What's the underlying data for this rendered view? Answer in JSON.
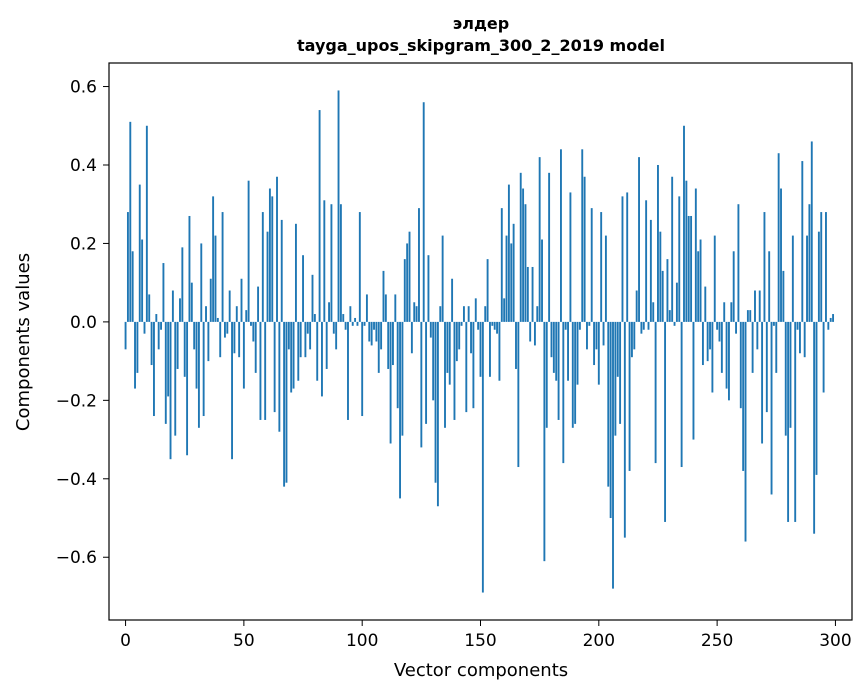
{
  "chart_data": {
    "type": "bar",
    "title": "элдер",
    "subtitle": "tayga_upos_skipgram_300_2_2019 model",
    "xlabel": "Vector components",
    "ylabel": "Components values",
    "xlim": [
      -7,
      307
    ],
    "ylim": [
      -0.76,
      0.66
    ],
    "xticks": [
      0,
      50,
      100,
      150,
      200,
      250,
      300
    ],
    "xtick_labels": [
      "0",
      "50",
      "100",
      "150",
      "200",
      "250",
      "300"
    ],
    "yticks": [
      -0.6,
      -0.4,
      -0.2,
      0.0,
      0.2,
      0.4,
      0.6
    ],
    "ytick_labels": [
      "−0.6",
      "−0.4",
      "−0.2",
      "0.0",
      "0.2",
      "0.4",
      "0.6"
    ],
    "bar_color": "#1f77b4",
    "grid": false,
    "x": "0..299 (component index)",
    "values": [
      -0.07,
      0.28,
      0.51,
      0.18,
      -0.17,
      -0.13,
      0.35,
      0.21,
      -0.03,
      0.5,
      0.07,
      -0.11,
      -0.24,
      0.02,
      -0.07,
      -0.02,
      0.15,
      -0.26,
      -0.19,
      -0.35,
      0.08,
      -0.29,
      -0.12,
      0.06,
      0.19,
      -0.14,
      -0.34,
      0.27,
      0.1,
      -0.07,
      -0.17,
      -0.27,
      0.2,
      -0.24,
      0.04,
      -0.1,
      0.11,
      0.32,
      0.22,
      0.01,
      -0.09,
      0.28,
      -0.04,
      -0.03,
      0.08,
      -0.35,
      -0.08,
      0.04,
      -0.09,
      0.11,
      -0.17,
      0.03,
      0.36,
      -0.01,
      -0.05,
      -0.13,
      0.09,
      -0.25,
      0.28,
      -0.25,
      0.23,
      0.34,
      0.32,
      -0.23,
      0.37,
      -0.28,
      0.26,
      -0.42,
      -0.41,
      -0.07,
      -0.18,
      -0.17,
      0.25,
      -0.15,
      -0.09,
      0.17,
      -0.09,
      -0.03,
      -0.07,
      0.12,
      0.02,
      -0.15,
      0.54,
      -0.19,
      0.31,
      -0.12,
      0.05,
      0.3,
      -0.03,
      -0.07,
      0.59,
      0.3,
      0.02,
      -0.02,
      -0.25,
      0.04,
      -0.01,
      0.01,
      -0.01,
      0.28,
      -0.24,
      -0.01,
      0.07,
      -0.05,
      -0.06,
      -0.02,
      -0.05,
      -0.13,
      -0.07,
      0.13,
      0.07,
      -0.12,
      -0.31,
      -0.11,
      0.07,
      -0.22,
      -0.45,
      -0.29,
      0.16,
      0.2,
      0.23,
      -0.08,
      0.05,
      0.04,
      0.29,
      -0.32,
      0.56,
      -0.26,
      0.17,
      -0.04,
      -0.2,
      -0.41,
      -0.47,
      0.04,
      0.22,
      -0.27,
      -0.13,
      -0.16,
      0.11,
      -0.25,
      -0.1,
      -0.07,
      -0.01,
      0.04,
      -0.23,
      0.04,
      -0.08,
      -0.22,
      0.06,
      -0.02,
      -0.14,
      -0.69,
      0.04,
      0.16,
      -0.14,
      -0.01,
      -0.02,
      -0.03,
      -0.15,
      0.29,
      0.06,
      0.22,
      0.35,
      0.2,
      0.25,
      -0.12,
      -0.37,
      0.38,
      0.34,
      0.3,
      0.14,
      -0.05,
      0.14,
      -0.06,
      0.04,
      0.42,
      0.21,
      -0.61,
      -0.27,
      0.38,
      -0.09,
      -0.13,
      -0.15,
      -0.25,
      0.44,
      -0.36,
      -0.02,
      -0.15,
      0.33,
      -0.27,
      -0.26,
      -0.16,
      -0.02,
      0.44,
      0.37,
      -0.07,
      -0.01,
      0.29,
      -0.11,
      -0.07,
      -0.16,
      0.28,
      -0.06,
      0.22,
      -0.42,
      -0.5,
      -0.68,
      -0.29,
      -0.14,
      -0.26,
      0.32,
      -0.55,
      0.33,
      -0.38,
      -0.09,
      -0.07,
      0.08,
      0.42,
      -0.03,
      -0.02,
      0.31,
      -0.02,
      0.26,
      0.05,
      -0.36,
      0.4,
      0.23,
      0.13,
      -0.51,
      0.16,
      0.03,
      0.37,
      -0.01,
      0.1,
      0.32,
      -0.37,
      0.5,
      0.36,
      0.27,
      0.27,
      -0.3,
      0.34,
      0.18,
      0.21,
      -0.11,
      0.09,
      -0.1,
      -0.07,
      -0.18,
      0.22,
      -0.02,
      -0.05,
      -0.13,
      0.05,
      -0.17,
      -0.2,
      0.05,
      0.18,
      -0.03,
      0.3,
      -0.22,
      -0.38,
      -0.56,
      0.03,
      0.03,
      -0.13,
      0.08,
      -0.07,
      0.08,
      -0.31,
      0.28,
      -0.23,
      0.18,
      -0.44,
      -0.01,
      -0.13,
      0.43,
      0.34,
      0.13,
      -0.29,
      -0.51,
      -0.27,
      0.22,
      -0.51,
      -0.02,
      -0.08,
      0.41,
      -0.09,
      0.22,
      0.3,
      0.46,
      -0.54,
      -0.39,
      0.23,
      0.28,
      -0.18,
      0.28,
      -0.02,
      0.01,
      0.02
    ]
  }
}
